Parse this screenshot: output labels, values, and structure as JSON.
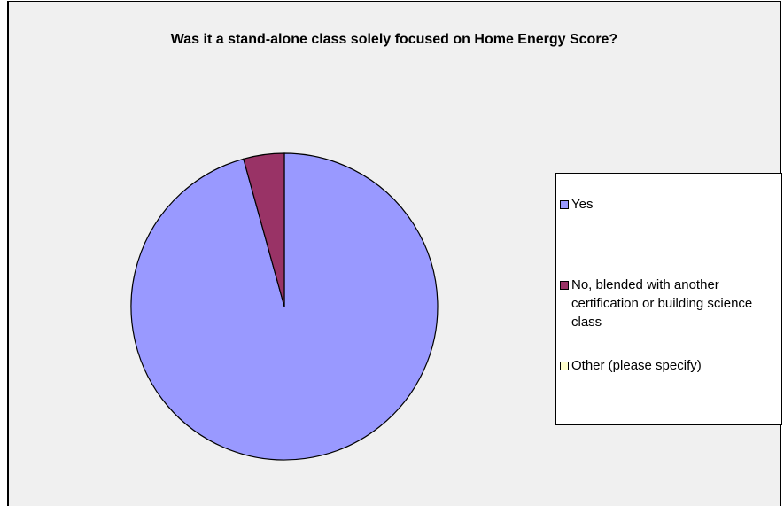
{
  "chart_data": {
    "type": "pie",
    "title": "Was it a stand-alone class solely focused on Home Energy Score?",
    "categories": [
      "Yes",
      "No, blended with another certification or building science class",
      "Other (please specify)"
    ],
    "values": [
      95.7,
      4.3,
      0
    ],
    "colors": [
      "#9999ff",
      "#993366",
      "#ffffcc"
    ],
    "legend": "right"
  }
}
